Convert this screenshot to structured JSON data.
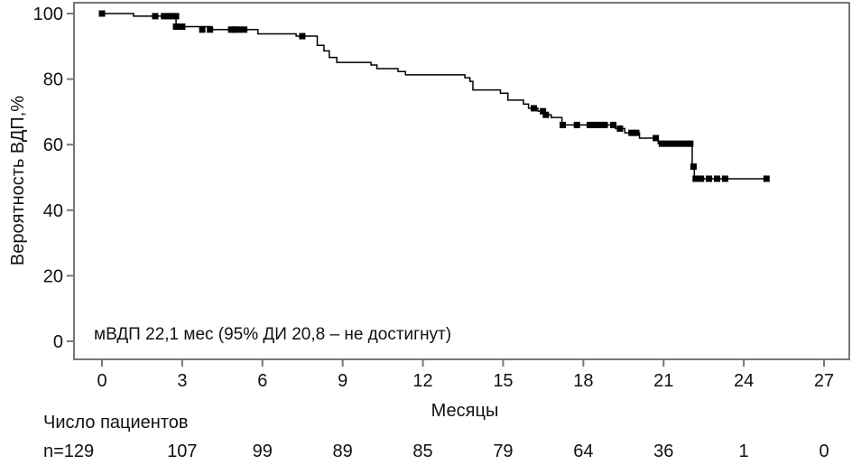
{
  "chart_data": {
    "type": "line",
    "subtype": "kaplan-meier",
    "ylabel": "Вероятность ВДП,%",
    "xlabel": "Месяцы",
    "annotation": "мВДП 22,1 мес (95% ДИ 20,8 – не достигнут)",
    "xlim": [
      0,
      27
    ],
    "ylim": [
      0,
      100
    ],
    "xticks": [
      "0",
      "3",
      "6",
      "9",
      "12",
      "15",
      "18",
      "21",
      "24",
      "27"
    ],
    "yticks": [
      "0",
      "20",
      "40",
      "60",
      "80",
      "100"
    ],
    "grid": false,
    "series": [
      {
        "name": "ВДП",
        "steps": [
          [
            0,
            100
          ],
          [
            1.18,
            99.2
          ],
          [
            2.77,
            96.0
          ],
          [
            4.1,
            95.1
          ],
          [
            5.83,
            93.8
          ],
          [
            7.26,
            93.1
          ],
          [
            8.05,
            90.3
          ],
          [
            8.3,
            88.6
          ],
          [
            8.5,
            86.6
          ],
          [
            8.78,
            85.1
          ],
          [
            10.06,
            84.3
          ],
          [
            10.28,
            83.2
          ],
          [
            11.07,
            82.3
          ],
          [
            11.35,
            81.3
          ],
          [
            13.57,
            80.4
          ],
          [
            13.76,
            79.3
          ],
          [
            13.87,
            76.7
          ],
          [
            14.9,
            75.7
          ],
          [
            15.18,
            73.6
          ],
          [
            15.76,
            72.4
          ],
          [
            15.95,
            71.1
          ],
          [
            16.3,
            70.2
          ],
          [
            16.55,
            69.1
          ],
          [
            16.8,
            68.3
          ],
          [
            17.2,
            66.0
          ],
          [
            19.2,
            64.9
          ],
          [
            19.55,
            63.6
          ],
          [
            20.1,
            62.0
          ],
          [
            20.8,
            60.3
          ],
          [
            22.07,
            53.3
          ],
          [
            22.15,
            49.6
          ],
          [
            24.85,
            49.6
          ]
        ],
        "censored": [
          [
            0,
            100
          ],
          [
            1.99,
            99.2
          ],
          [
            2.32,
            99.2
          ],
          [
            2.49,
            99.2
          ],
          [
            2.66,
            99.2
          ],
          [
            2.77,
            99.2
          ],
          [
            2.77,
            96.0
          ],
          [
            2.88,
            96.0
          ],
          [
            3.0,
            96.0
          ],
          [
            3.75,
            95.1
          ],
          [
            4.04,
            95.1
          ],
          [
            4.83,
            95.1
          ],
          [
            4.96,
            95.1
          ],
          [
            5.1,
            95.1
          ],
          [
            5.32,
            95.1
          ],
          [
            7.49,
            93.1
          ],
          [
            16.15,
            71.1
          ],
          [
            16.49,
            70.2
          ],
          [
            16.6,
            69.1
          ],
          [
            17.23,
            66.0
          ],
          [
            17.76,
            66.0
          ],
          [
            18.24,
            66.0
          ],
          [
            18.35,
            66.0
          ],
          [
            18.47,
            66.0
          ],
          [
            18.58,
            66.0
          ],
          [
            18.7,
            66.0
          ],
          [
            18.8,
            66.0
          ],
          [
            19.12,
            66.0
          ],
          [
            19.37,
            64.9
          ],
          [
            19.8,
            63.6
          ],
          [
            19.98,
            63.6
          ],
          [
            20.71,
            62.0
          ],
          [
            20.94,
            60.3
          ],
          [
            21.1,
            60.3
          ],
          [
            21.3,
            60.3
          ],
          [
            21.5,
            60.3
          ],
          [
            21.7,
            60.3
          ],
          [
            21.9,
            60.3
          ],
          [
            22.0,
            60.3
          ],
          [
            22.12,
            53.3
          ],
          [
            22.2,
            49.6
          ],
          [
            22.4,
            49.6
          ],
          [
            22.7,
            49.6
          ],
          [
            23.0,
            49.6
          ],
          [
            23.3,
            49.6
          ],
          [
            24.85,
            49.6
          ]
        ]
      }
    ],
    "risk_table": {
      "title": "Число пациентов",
      "values": [
        "n=129",
        "107",
        "99",
        "89",
        "85",
        "79",
        "64",
        "36",
        "1",
        "0"
      ]
    }
  }
}
